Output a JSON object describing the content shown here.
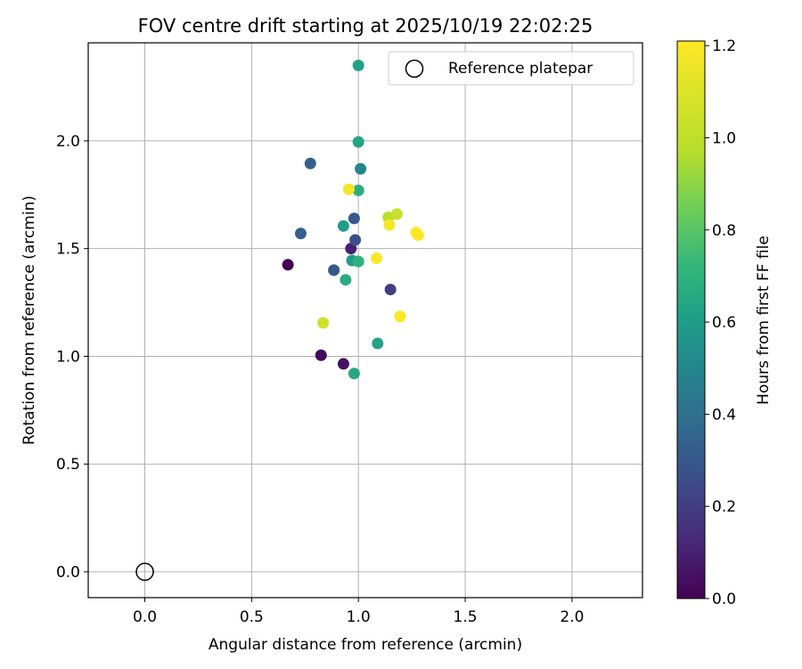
{
  "chart_data": {
    "type": "scatter",
    "title": "FOV centre drift starting at 2025/10/19 22:02:25",
    "xlabel": "Angular distance from reference (arcmin)",
    "ylabel": "Rotation from reference (arcmin)",
    "xlim": [
      -0.265,
      2.33
    ],
    "ylim": [
      -0.12,
      2.455
    ],
    "xticks": [
      0.0,
      0.5,
      1.0,
      1.5,
      2.0
    ],
    "xtick_labels": [
      "0.0",
      "0.5",
      "1.0",
      "1.5",
      "2.0"
    ],
    "yticks": [
      0.0,
      0.5,
      1.0,
      1.5,
      2.0
    ],
    "ytick_labels": [
      "0.0",
      "0.5",
      "1.0",
      "1.5",
      "2.0"
    ],
    "grid": true,
    "legend": {
      "position": "top-right",
      "label": "Reference platepar"
    },
    "reference_point": {
      "x": 0.0,
      "y": 0.0
    },
    "colorbar": {
      "label": "Hours from first FF file",
      "range": [
        0.0,
        1.21
      ],
      "ticks": [
        0.0,
        0.2,
        0.4,
        0.6,
        0.8,
        1.0,
        1.2
      ],
      "tick_labels": [
        "0.0",
        "0.2",
        "0.4",
        "0.6",
        "0.8",
        "1.0",
        "1.2"
      ],
      "colormap": "viridis"
    },
    "points": [
      {
        "x": 0.67,
        "y": 1.425,
        "c": 0.0
      },
      {
        "x": 0.825,
        "y": 1.005,
        "c": 0.02
      },
      {
        "x": 0.93,
        "y": 0.965,
        "c": 0.05
      },
      {
        "x": 0.965,
        "y": 1.5,
        "c": 0.1
      },
      {
        "x": 1.15,
        "y": 1.31,
        "c": 0.2
      },
      {
        "x": 0.985,
        "y": 1.54,
        "c": 0.27
      },
      {
        "x": 0.885,
        "y": 1.4,
        "c": 0.3
      },
      {
        "x": 0.98,
        "y": 1.64,
        "c": 0.3
      },
      {
        "x": 0.775,
        "y": 1.895,
        "c": 0.33
      },
      {
        "x": 0.73,
        "y": 1.57,
        "c": 0.33
      },
      {
        "x": 1.01,
        "y": 1.87,
        "c": 0.5
      },
      {
        "x": 0.93,
        "y": 1.605,
        "c": 0.6
      },
      {
        "x": 0.97,
        "y": 1.445,
        "c": 0.6
      },
      {
        "x": 1.0,
        "y": 2.35,
        "c": 0.62
      },
      {
        "x": 1.0,
        "y": 1.995,
        "c": 0.63
      },
      {
        "x": 1.09,
        "y": 1.06,
        "c": 0.63
      },
      {
        "x": 0.98,
        "y": 0.92,
        "c": 0.65
      },
      {
        "x": 0.94,
        "y": 1.355,
        "c": 0.67
      },
      {
        "x": 1.0,
        "y": 1.77,
        "c": 0.68
      },
      {
        "x": 1.0,
        "y": 1.44,
        "c": 0.7
      },
      {
        "x": 1.14,
        "y": 1.645,
        "c": 0.98
      },
      {
        "x": 1.18,
        "y": 1.66,
        "c": 1.03
      },
      {
        "x": 0.835,
        "y": 1.155,
        "c": 1.05
      },
      {
        "x": 0.955,
        "y": 1.775,
        "c": 1.18
      },
      {
        "x": 1.145,
        "y": 1.61,
        "c": 1.19
      },
      {
        "x": 1.085,
        "y": 1.455,
        "c": 1.2
      },
      {
        "x": 1.195,
        "y": 1.185,
        "c": 1.2
      },
      {
        "x": 1.27,
        "y": 1.575,
        "c": 1.21
      },
      {
        "x": 1.28,
        "y": 1.562,
        "c": 1.21
      }
    ]
  }
}
